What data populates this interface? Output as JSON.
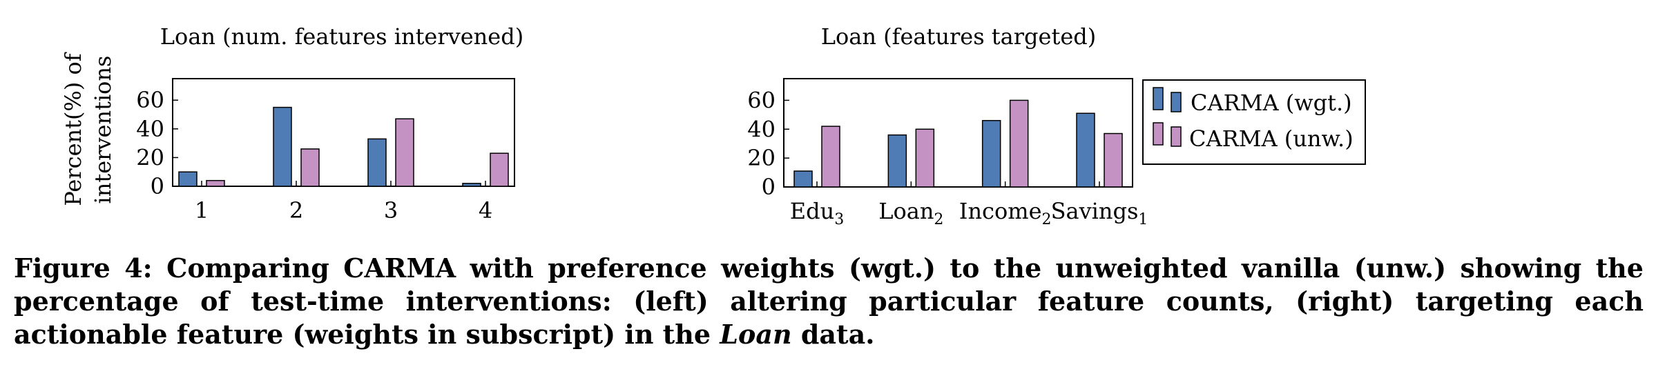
{
  "chart_data": [
    {
      "type": "bar",
      "title": "Loan (num. features intervened)",
      "ylabel": "Percent(%) of interventions",
      "ylabel_lines": [
        "Percent(%) of",
        "interventions"
      ],
      "xlabel": "",
      "categories": [
        "1",
        "2",
        "3",
        "4"
      ],
      "yticks": [
        "0",
        "20",
        "40",
        "60"
      ],
      "ylim": [
        0,
        75
      ],
      "series": [
        {
          "name": "CARMA (wgt.)",
          "values": [
            10,
            55,
            33,
            2
          ]
        },
        {
          "name": "CARMA (unw.)",
          "values": [
            4,
            26,
            47,
            23
          ]
        }
      ]
    },
    {
      "type": "bar",
      "title": "Loan (features targeted)",
      "xlabel": "",
      "ylabel": "",
      "categories": [
        {
          "base": "Edu",
          "sub": "3"
        },
        {
          "base": "Loan",
          "sub": "2"
        },
        {
          "base": "Income",
          "sub": "2"
        },
        {
          "base": "Savings",
          "sub": "1"
        }
      ],
      "yticks": [
        "0",
        "20",
        "40",
        "60"
      ],
      "ylim": [
        0,
        75
      ],
      "legend_position": "right",
      "series": [
        {
          "name": "CARMA (wgt.)",
          "values": [
            11,
            36,
            46,
            51
          ]
        },
        {
          "name": "CARMA (unw.)",
          "values": [
            42,
            40,
            60,
            37
          ]
        }
      ]
    }
  ],
  "colors": {
    "wgt": "#4F7CB5",
    "unw": "#C493C3"
  },
  "caption": {
    "lead": "Figure 4: Comparing CARMA with preference weights (wgt.) to the unweighted vanilla (unw.) showing the percentage of test-time interventions: (left) altering particular feature counts, (right) targeting each actionable feature (weights in subscript) in the ",
    "emph": "Loan",
    "tail": " data."
  }
}
